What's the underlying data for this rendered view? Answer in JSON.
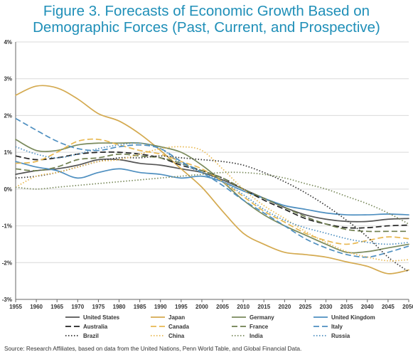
{
  "title_line1": "Figure 3. Forecasts of Economic Growth Based on",
  "title_line2": "Demographic Forces (Past, Current, and Prospective)",
  "source": "Source: Research Affiliates, based on data from the United Nations, Penn World Table, and Global Financial Data.",
  "chart_data": {
    "type": "line",
    "title": "Figure 3. Forecasts of Economic Growth Based on Demographic Forces (Past, Current, and Prospective)",
    "xlabel": "",
    "ylabel": "",
    "x": [
      1955,
      1960,
      1965,
      1970,
      1975,
      1980,
      1985,
      1990,
      1995,
      2000,
      2005,
      2010,
      2015,
      2020,
      2025,
      2030,
      2035,
      2040,
      2045,
      2050
    ],
    "x_tick_labels": [
      "1955",
      "1960",
      "1965",
      "1970",
      "1975",
      "1980",
      "1985",
      "1990",
      "1995",
      "2000",
      "2005",
      "2010",
      "2015",
      "2020",
      "2025",
      "2030",
      "2035",
      "2040",
      "2045",
      "2050"
    ],
    "ylim": [
      -3,
      4
    ],
    "y_ticks": [
      4,
      3,
      2,
      1,
      0,
      -1,
      -2,
      -3
    ],
    "y_tick_labels": [
      "4%",
      "3%",
      "2%",
      "1%",
      "0%",
      "-1%",
      "-2%",
      "-3%"
    ],
    "grid": "horizontal",
    "legend_position": "bottom",
    "series": [
      {
        "name": "United States",
        "color": "#555555",
        "dash": "solid",
        "values": [
          0.4,
          0.5,
          0.55,
          0.65,
          0.8,
          0.8,
          0.7,
          0.65,
          0.55,
          0.45,
          0.25,
          0.0,
          -0.25,
          -0.5,
          -0.7,
          -0.82,
          -0.88,
          -0.88,
          -0.82,
          -0.8
        ]
      },
      {
        "name": "Japan",
        "color": "#d4aa50",
        "dash": "solid",
        "values": [
          2.55,
          2.8,
          2.75,
          2.45,
          2.05,
          1.85,
          1.5,
          1.05,
          0.55,
          0.05,
          -0.6,
          -1.2,
          -1.5,
          -1.72,
          -1.78,
          -1.85,
          -1.98,
          -2.1,
          -2.3,
          -2.2
        ]
      },
      {
        "name": "Germany",
        "color": "#7a8a5c",
        "dash": "solid",
        "values": [
          1.35,
          1.05,
          1.05,
          1.2,
          1.25,
          1.25,
          1.25,
          1.15,
          1.0,
          0.65,
          0.2,
          -0.3,
          -0.7,
          -1.0,
          -1.25,
          -1.5,
          -1.72,
          -1.7,
          -1.6,
          -1.5
        ]
      },
      {
        "name": "United Kingdom",
        "color": "#4e8fc0",
        "dash": "solid",
        "values": [
          0.75,
          0.6,
          0.5,
          0.3,
          0.45,
          0.55,
          0.45,
          0.4,
          0.3,
          0.35,
          0.2,
          -0.05,
          -0.25,
          -0.45,
          -0.55,
          -0.65,
          -0.7,
          -0.7,
          -0.68,
          -0.7
        ]
      },
      {
        "name": "Australia",
        "color": "#222222",
        "dash": "8 4",
        "values": [
          0.9,
          0.8,
          0.85,
          0.95,
          1.0,
          1.0,
          0.95,
          0.85,
          0.65,
          0.5,
          0.3,
          0.0,
          -0.3,
          -0.55,
          -0.8,
          -0.95,
          -1.05,
          -1.05,
          -1.0,
          -0.98
        ]
      },
      {
        "name": "Canada",
        "color": "#e8b850",
        "dash": "8 4",
        "values": [
          0.7,
          0.75,
          1.0,
          1.3,
          1.35,
          1.2,
          1.05,
          0.95,
          0.75,
          0.55,
          0.2,
          -0.2,
          -0.6,
          -0.9,
          -1.2,
          -1.4,
          -1.5,
          -1.4,
          -1.3,
          -1.35
        ]
      },
      {
        "name": "France",
        "color": "#6f7f4f",
        "dash": "8 4",
        "values": [
          0.55,
          0.5,
          0.6,
          0.8,
          0.85,
          0.95,
          0.9,
          0.85,
          0.7,
          0.5,
          0.3,
          0.0,
          -0.25,
          -0.5,
          -0.75,
          -0.95,
          -1.1,
          -1.15,
          -1.15,
          -1.15
        ]
      },
      {
        "name": "Italy",
        "color": "#4e8fc0",
        "dash": "8 4",
        "values": [
          1.92,
          1.6,
          1.3,
          1.1,
          1.05,
          1.15,
          1.2,
          1.1,
          0.75,
          0.45,
          0.1,
          -0.3,
          -0.65,
          -1.0,
          -1.35,
          -1.6,
          -1.78,
          -1.85,
          -1.72,
          -1.55
        ]
      },
      {
        "name": "Brazil",
        "color": "#333333",
        "dash": "1.5 2.5",
        "values": [
          0.3,
          0.35,
          0.45,
          0.6,
          0.75,
          0.85,
          0.85,
          0.9,
          0.85,
          0.8,
          0.75,
          0.65,
          0.45,
          0.2,
          -0.1,
          -0.45,
          -0.85,
          -1.3,
          -1.85,
          -2.25
        ]
      },
      {
        "name": "China",
        "color": "#e8b850",
        "dash": "1.5 2.5",
        "values": [
          0.05,
          0.35,
          0.45,
          0.6,
          0.75,
          0.8,
          0.95,
          1.1,
          1.15,
          1.05,
          0.55,
          0.0,
          -0.45,
          -0.8,
          -1.15,
          -1.45,
          -1.7,
          -1.85,
          -1.95,
          -1.92
        ]
      },
      {
        "name": "India",
        "color": "#7a8a5c",
        "dash": "1.5 2.5",
        "values": [
          0.05,
          0.0,
          0.05,
          0.1,
          0.15,
          0.2,
          0.25,
          0.3,
          0.35,
          0.4,
          0.45,
          0.45,
          0.4,
          0.3,
          0.15,
          0.0,
          -0.2,
          -0.4,
          -0.65,
          -0.95
        ]
      },
      {
        "name": "Russia",
        "color": "#4e8fc0",
        "dash": "1.5 2.5",
        "values": [
          1.15,
          0.95,
          0.85,
          0.95,
          1.1,
          1.2,
          1.25,
          1.1,
          0.7,
          0.45,
          0.2,
          -0.15,
          -0.55,
          -0.85,
          -1.05,
          -1.2,
          -1.35,
          -1.45,
          -1.5,
          -1.45
        ]
      }
    ]
  }
}
